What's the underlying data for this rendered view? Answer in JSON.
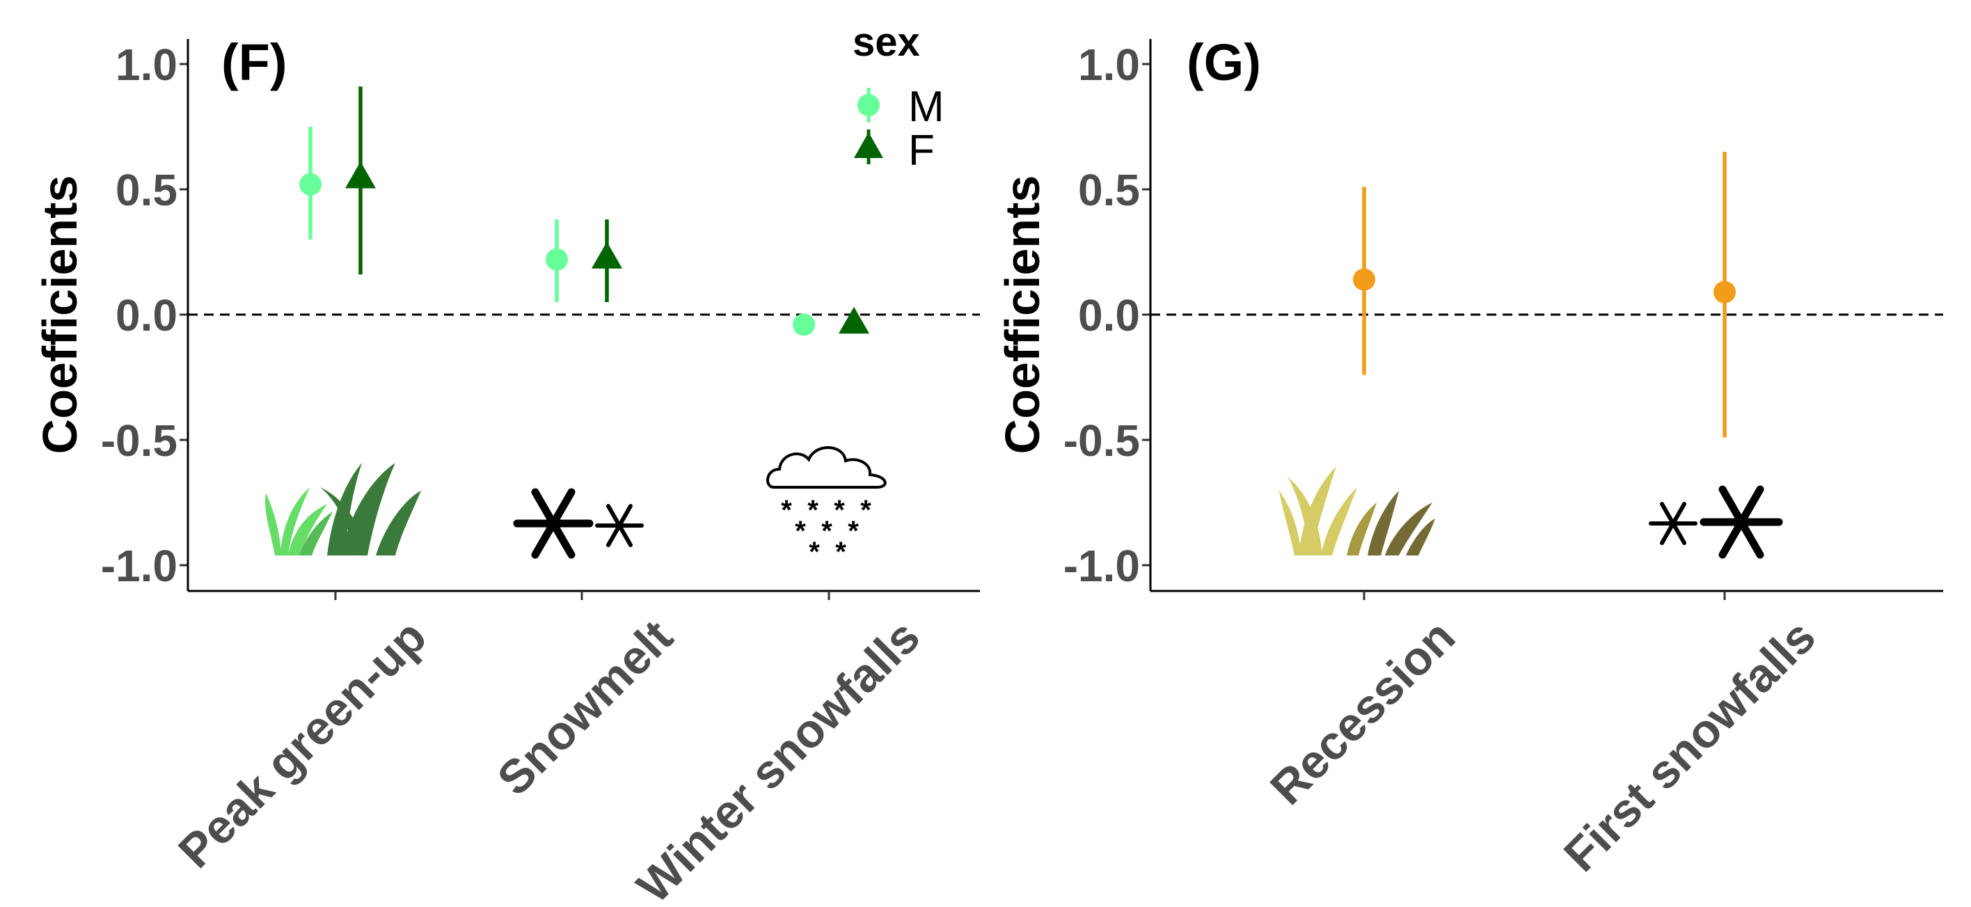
{
  "chart_data": [
    {
      "type": "scatter",
      "panel_label": "(F)",
      "ylabel": "Coefficients",
      "xlabel": "",
      "ylim": [
        -1.1,
        1.1
      ],
      "yticks": [
        1.0,
        0.5,
        0.0,
        -0.5,
        -1.0
      ],
      "ytick_labels": [
        "1.0",
        "0.5",
        "0.0",
        "-0.5",
        "-1.0"
      ],
      "categories": [
        "Peak green-up",
        "Snowmelt",
        "Winter snowfalls"
      ],
      "reference_line": 0,
      "legend": {
        "title": "sex",
        "position": "top-right",
        "entries": [
          {
            "label": "M",
            "marker": "circle",
            "color": "#66ff99"
          },
          {
            "label": "F",
            "marker": "triangle",
            "color": "#006400"
          }
        ]
      },
      "series": [
        {
          "name": "M",
          "color": "#66ff99",
          "marker": "circle",
          "values": [
            0.52,
            0.22,
            -0.04
          ],
          "lower": [
            0.3,
            0.05,
            -0.06
          ],
          "upper": [
            0.75,
            0.38,
            -0.02
          ]
        },
        {
          "name": "F",
          "color": "#006400",
          "marker": "triangle",
          "values": [
            0.55,
            0.23,
            -0.03
          ],
          "lower": [
            0.16,
            0.05,
            -0.05
          ],
          "upper": [
            0.91,
            0.38,
            -0.01
          ]
        }
      ],
      "icons": [
        "grass-icon",
        "snowflakes-icon",
        "snow-cloud-icon"
      ]
    },
    {
      "type": "scatter",
      "panel_label": "(G)",
      "ylabel": "Coefficients",
      "xlabel": "",
      "ylim": [
        -1.1,
        1.1
      ],
      "yticks": [
        1.0,
        0.5,
        0.0,
        -0.5,
        -1.0
      ],
      "ytick_labels": [
        "1.0",
        "0.5",
        "0.0",
        "-0.5",
        "-1.0"
      ],
      "categories": [
        "Recession",
        "First snowfalls"
      ],
      "reference_line": 0,
      "series": [
        {
          "color": "#f39c1a",
          "marker": "circle",
          "values": [
            0.14,
            0.09
          ],
          "lower": [
            -0.24,
            -0.49
          ],
          "upper": [
            0.51,
            0.65
          ]
        }
      ],
      "icons": [
        "dry-grass-icon",
        "snowflakes-icon"
      ]
    }
  ],
  "colors": {
    "text_dark": "#4d4d4d",
    "grass_light": "#66dd66",
    "grass_dark": "#3a7a3a",
    "dry_grass_light": "#d6cc66",
    "dry_grass_dark": "#736b33"
  }
}
